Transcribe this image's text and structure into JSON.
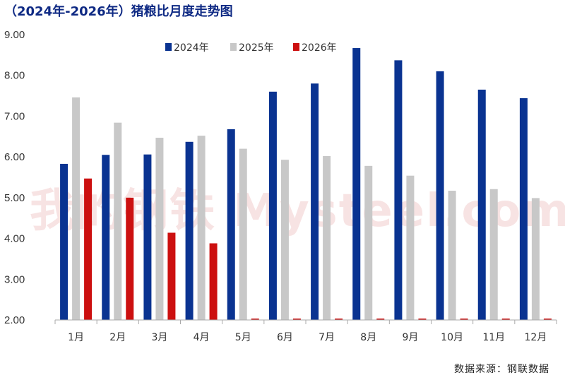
{
  "title": "（2024年-2026年）猪粮比月度走势图",
  "source": "数据来源：钢联数据",
  "watermark": "我的钢铁 Mysteel.com",
  "colors": {
    "s2024": "#0a3391",
    "s2025": "#c8c8c8",
    "s2026": "#cc1010",
    "axis": "#aaaaaa",
    "title": "#0f2a84"
  },
  "chart_data": {
    "type": "bar",
    "title": "（2024年-2026年）猪粮比月度走势图",
    "categories": [
      "1月",
      "2月",
      "3月",
      "4月",
      "5月",
      "6月",
      "7月",
      "8月",
      "9月",
      "10月",
      "11月",
      "12月"
    ],
    "ylim": [
      2.0,
      9.0
    ],
    "yticks": [
      "2.00",
      "3.00",
      "4.00",
      "5.00",
      "6.00",
      "7.00",
      "8.00",
      "9.00"
    ],
    "legend_position": "top-center",
    "grid": false,
    "series": [
      {
        "name": "2024年",
        "values": [
          5.83,
          6.05,
          6.06,
          6.37,
          6.68,
          7.6,
          7.8,
          8.67,
          8.37,
          8.1,
          7.65,
          7.44
        ]
      },
      {
        "name": "2025年",
        "values": [
          7.46,
          6.84,
          6.47,
          6.52,
          6.2,
          5.93,
          6.02,
          5.78,
          5.54,
          5.17,
          5.21,
          4.99
        ]
      },
      {
        "name": "2026年",
        "values": [
          5.47,
          5.0,
          4.14,
          3.88,
          null,
          null,
          null,
          null,
          null,
          null,
          null,
          null
        ]
      }
    ]
  }
}
